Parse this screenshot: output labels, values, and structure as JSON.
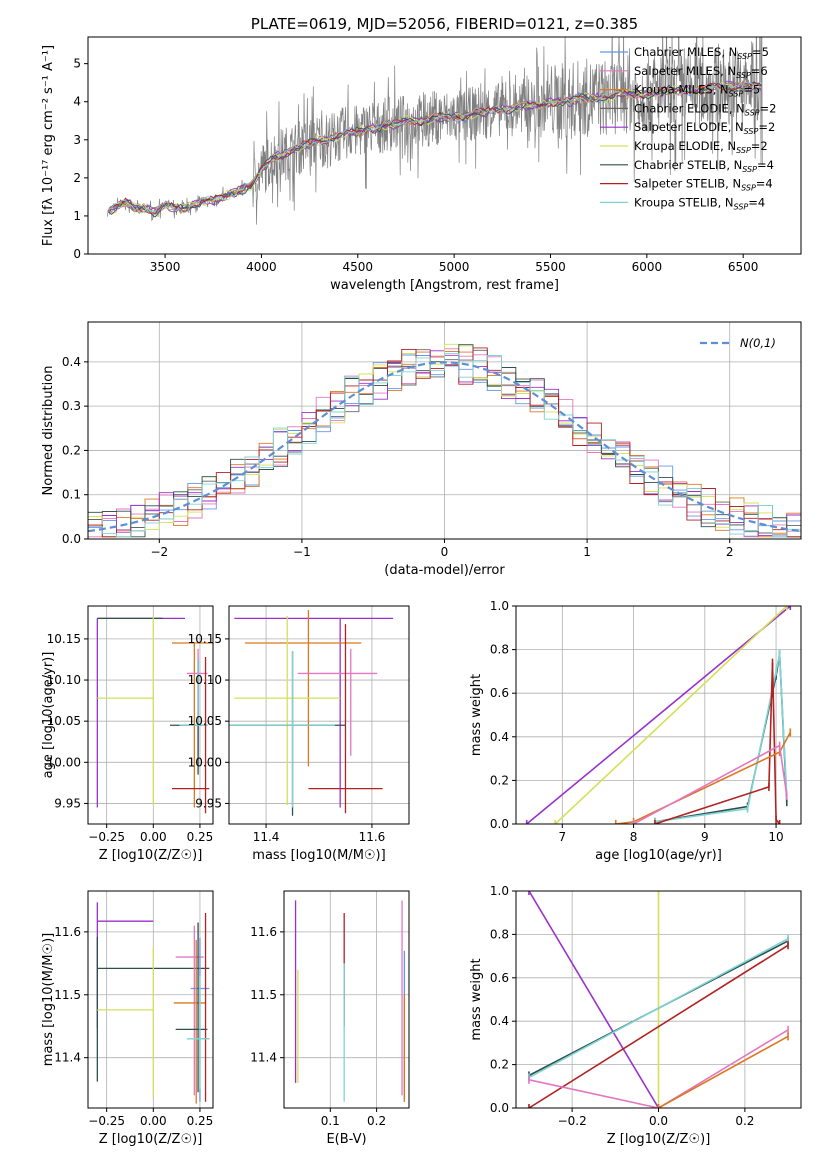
{
  "chart_data": [
    {
      "id": "spectrum",
      "type": "line",
      "title": "PLATE=0619, MJD=52056, FIBERID=0121, z=0.385",
      "xlabel": "wavelength [Angstrom, rest frame]",
      "ylabel": "Flux [fλ 10⁻¹⁷ erg cm⁻² s⁻¹ A⁻¹]",
      "xlim": [
        3100,
        6800
      ],
      "ylim": [
        0,
        5.7
      ],
      "xticks": [
        3500,
        4000,
        4500,
        5000,
        5500,
        6000,
        6500
      ],
      "yticks": [
        0,
        1,
        2,
        3,
        4,
        5
      ],
      "grid": false,
      "legend_position": "top-right",
      "data_color": "#808080",
      "data_x": [
        3200,
        3250,
        3300,
        3350,
        3400,
        3450,
        3500,
        3550,
        3600,
        3650,
        3700,
        3750,
        3800,
        3850,
        3900,
        3950,
        4000,
        4050,
        4100,
        4150,
        4200,
        4250,
        4300,
        4350,
        4400,
        4450,
        4500,
        4550,
        4600,
        4650,
        4700,
        4750,
        4800,
        4850,
        4900,
        4950,
        5000,
        5050,
        5100,
        5150,
        5200,
        5250,
        5300,
        5350,
        5400,
        5450,
        5500,
        5550,
        5600,
        5650,
        5700,
        5750,
        5800,
        5850,
        5900,
        5950,
        6000,
        6050,
        6100,
        6150,
        6200,
        6250,
        6300,
        6350,
        6400,
        6450,
        6500,
        6550,
        6600
      ],
      "data_y": [
        1.1,
        1.25,
        1.35,
        1.2,
        1.2,
        1.1,
        1.3,
        1.2,
        1.2,
        1.3,
        1.4,
        1.4,
        1.5,
        1.6,
        1.7,
        1.8,
        2.2,
        2.5,
        2.6,
        2.7,
        2.8,
        2.9,
        3.0,
        3.0,
        3.1,
        3.2,
        3.2,
        3.3,
        3.3,
        3.4,
        3.4,
        3.5,
        3.5,
        3.5,
        3.6,
        3.6,
        3.6,
        3.6,
        3.7,
        3.7,
        3.8,
        3.8,
        3.8,
        3.9,
        3.9,
        3.9,
        4.0,
        4.0,
        4.0,
        4.1,
        4.1,
        4.1,
        4.1,
        4.2,
        4.2,
        4.2,
        4.2,
        4.2,
        4.3,
        4.3,
        4.3,
        4.3,
        4.3,
        4.4,
        4.4,
        4.4,
        4.4,
        4.4,
        4.4
      ],
      "series": [
        {
          "name": "Chabrier MILES, N_SSP=5",
          "color": "#6495ed"
        },
        {
          "name": "Salpeter MILES, N_SSP=6",
          "color": "#e377c2"
        },
        {
          "name": "Kroupa MILES, N_SSP=5",
          "color": "#dd7722"
        },
        {
          "name": "Chabrier ELODIE, N_SSP=2",
          "color": "#666666"
        },
        {
          "name": "Salpeter ELODIE, N_SSP=2",
          "color": "#9932cc"
        },
        {
          "name": "Kroupa ELODIE, N_SSP=2",
          "color": "#d4e157"
        },
        {
          "name": "Chabrier STELIB, N_SSP=4",
          "color": "#2f4f4f"
        },
        {
          "name": "Salpeter STELIB, N_SSP=4",
          "color": "#b22222"
        },
        {
          "name": "Kroupa STELIB, N_SSP=4",
          "color": "#7fd4d4"
        }
      ]
    },
    {
      "id": "residuals",
      "type": "line",
      "xlabel": "(data-model)/error",
      "ylabel": "Normed distribution",
      "xlim": [
        -2.5,
        2.5
      ],
      "ylim": [
        0,
        0.49
      ],
      "xticks": [
        -2,
        -1,
        0,
        1,
        2
      ],
      "yticks": [
        0.0,
        0.1,
        0.2,
        0.3,
        0.4
      ],
      "grid": true,
      "legend_position": "top-right",
      "legend": "N(0,1)",
      "normal_color": "#5b8fd6"
    },
    {
      "id": "age_vs_Z",
      "type": "scatter",
      "xlabel": "Z [log10(Z/Z☉)]",
      "ylabel": "age  [log10(age/yr)]",
      "xlim": [
        -0.35,
        0.32
      ],
      "ylim": [
        9.925,
        10.19
      ],
      "xticks": [
        -0.25,
        0.0,
        0.25
      ],
      "yticks": [
        9.95,
        10.0,
        10.05,
        10.1,
        10.15
      ],
      "grid": true,
      "points": [
        {
          "x": -0.3,
          "y": 10.175,
          "xerr": [
            0,
            0.47
          ],
          "yerr": [
            0.23,
            0
          ],
          "color": "#9932cc"
        },
        {
          "x": -0.3,
          "y": 10.175,
          "xerr": [
            0,
            0.35
          ],
          "yerr": [
            0,
            0
          ],
          "color": "#2f4f4f"
        },
        {
          "x": 0.0,
          "y": 10.078,
          "xerr": [
            0.3,
            0
          ],
          "yerr": [
            0.13,
            0.1
          ],
          "color": "#d4e157"
        },
        {
          "x": 0.22,
          "y": 10.145,
          "xerr": [
            0.12,
            0.1
          ],
          "yerr": [
            0.2,
            0
          ],
          "color": "#dd7722"
        },
        {
          "x": 0.24,
          "y": 10.108,
          "xerr": [
            0.06,
            0.05
          ],
          "yerr": [
            0.1,
            0.03
          ],
          "color": "#e377c2"
        },
        {
          "x": 0.24,
          "y": 10.045,
          "xerr": [
            0.15,
            0.05
          ],
          "yerr": [
            0.06,
            0.08
          ],
          "color": "#2f4f4f"
        },
        {
          "x": 0.24,
          "y": 10.045,
          "xerr": [
            0.1,
            0.05
          ],
          "yerr": [
            0,
            0.08
          ],
          "color": "#7fd4d4"
        },
        {
          "x": 0.28,
          "y": 9.968,
          "xerr": [
            0.18,
            0.02
          ],
          "yerr": [
            0.03,
            0.16
          ],
          "color": "#b22222"
        }
      ]
    },
    {
      "id": "age_vs_mass",
      "type": "scatter",
      "xlabel": "mass [log10(M/M☉)]",
      "xlim": [
        11.33,
        11.67
      ],
      "ylim": [
        9.925,
        10.19
      ],
      "xticks": [
        11.4,
        11.6
      ],
      "yticks": [
        9.95,
        10.0,
        10.05,
        10.1,
        10.15
      ],
      "grid": true,
      "points": [
        {
          "x": 11.54,
          "y": 10.175,
          "xerr": [
            0.2,
            0.1
          ],
          "yerr": [
            0.23,
            0
          ],
          "color": "#9932cc"
        },
        {
          "x": 11.48,
          "y": 10.145,
          "xerr": [
            0.12,
            0.1
          ],
          "yerr": [
            0.15,
            0.04
          ],
          "color": "#dd7722"
        },
        {
          "x": 11.44,
          "y": 10.078,
          "xerr": [
            0.1,
            0.1
          ],
          "yerr": [
            0.13,
            0.1
          ],
          "color": "#d4e157"
        },
        {
          "x": 11.56,
          "y": 10.108,
          "xerr": [
            0.1,
            0.05
          ],
          "yerr": [
            0.1,
            0.03
          ],
          "color": "#e377c2"
        },
        {
          "x": 11.45,
          "y": 10.045,
          "xerr": [
            0.12,
            0.1
          ],
          "yerr": [
            0.11,
            0.09
          ],
          "color": "#2f4f4f"
        },
        {
          "x": 11.45,
          "y": 10.045,
          "xerr": [
            0.12,
            0.08
          ],
          "yerr": [
            0.1,
            0.09
          ],
          "color": "#7fd4d4"
        },
        {
          "x": 11.55,
          "y": 9.968,
          "xerr": [
            0.07,
            0.07
          ],
          "yerr": [
            0.03,
            0.2
          ],
          "color": "#b22222"
        }
      ]
    },
    {
      "id": "massweight_vs_age",
      "type": "line",
      "xlabel": "age  [log10(age/yr)]",
      "ylabel": "mass weight",
      "xlim": [
        6.35,
        10.35
      ],
      "ylim": [
        0,
        1.0
      ],
      "xticks": [
        7,
        8,
        9,
        10
      ],
      "yticks": [
        0.0,
        0.2,
        0.4,
        0.6,
        0.8,
        1.0
      ],
      "grid": true,
      "series": [
        {
          "color": "#9932cc",
          "x": [
            6.5,
            10.2
          ],
          "y": [
            0.0,
            1.0
          ]
        },
        {
          "color": "#d4e157",
          "x": [
            6.9,
            10.15
          ],
          "y": [
            0.0,
            1.0
          ]
        },
        {
          "color": "#2f4f4f",
          "x": [
            8.3,
            9.6,
            10.0,
            10.05,
            10.15
          ],
          "y": [
            0.01,
            0.08,
            0.68,
            0.78,
            0.1
          ]
        },
        {
          "color": "#7fd4d4",
          "x": [
            8.3,
            9.6,
            10.0,
            10.05,
            10.15
          ],
          "y": [
            0.01,
            0.07,
            0.7,
            0.78,
            0.13
          ]
        },
        {
          "color": "#b22222",
          "x": [
            8.3,
            9.9,
            9.95,
            10.0,
            10.05
          ],
          "y": [
            0.0,
            0.17,
            0.74,
            0.02,
            0.0
          ]
        },
        {
          "color": "#dd7722",
          "x": [
            7.75,
            8.0,
            10.05,
            10.2
          ],
          "y": [
            0.0,
            0.01,
            0.33,
            0.42
          ]
        },
        {
          "color": "#e377c2",
          "x": [
            8.0,
            10.05,
            10.15
          ],
          "y": [
            0.0,
            0.36,
            0.13
          ]
        }
      ]
    },
    {
      "id": "mass_vs_Z",
      "type": "scatter",
      "xlabel": "Z [log10(Z/Z☉)]",
      "ylabel": "mass [log10(M/M☉)]",
      "xlim": [
        -0.35,
        0.32
      ],
      "ylim": [
        11.32,
        11.665
      ],
      "xticks": [
        -0.25,
        0.0,
        0.25
      ],
      "yticks": [
        11.4,
        11.5,
        11.6
      ],
      "grid": true,
      "points": [
        {
          "x": -0.3,
          "y": 11.617,
          "xerr": [
            0,
            0.3
          ],
          "yerr": [
            0.17,
            0.03
          ],
          "color": "#9932cc"
        },
        {
          "x": -0.3,
          "y": 11.542,
          "xerr": [
            0,
            0.6
          ],
          "yerr": [
            0.18,
            0.05
          ],
          "color": "#2f4f4f"
        },
        {
          "x": 0.0,
          "y": 11.476,
          "xerr": [
            0.3,
            0
          ],
          "yerr": [
            0.14,
            0.1
          ],
          "color": "#d4e157"
        },
        {
          "x": 0.22,
          "y": 11.56,
          "xerr": [
            0.1,
            0.05
          ],
          "yerr": [
            0.22,
            0.05
          ],
          "color": "#e377c2"
        },
        {
          "x": 0.25,
          "y": 11.51,
          "xerr": [
            0.05,
            0.05
          ],
          "yerr": [
            0.18,
            0.08
          ],
          "color": "#6495ed"
        },
        {
          "x": 0.23,
          "y": 11.487,
          "xerr": [
            0.12,
            0.05
          ],
          "yerr": [
            0.16,
            0.1
          ],
          "color": "#dd7722"
        },
        {
          "x": 0.24,
          "y": 11.445,
          "xerr": [
            0.12,
            0.05
          ],
          "yerr": [
            0.1,
            0.17
          ],
          "color": "#2f4f4f"
        },
        {
          "x": 0.28,
          "y": 11.43,
          "xerr": [
            0.02,
            0.02
          ],
          "yerr": [
            0.1,
            0.2
          ],
          "color": "#b22222"
        },
        {
          "x": 0.25,
          "y": 11.43,
          "xerr": [
            0.07,
            0.05
          ],
          "yerr": [
            0.08,
            0.1
          ],
          "color": "#7fd4d4"
        }
      ]
    },
    {
      "id": "mass_vs_ebv",
      "type": "scatter",
      "xlabel": "E(B-V)",
      "xlim": [
        0.0,
        0.27
      ],
      "ylim": [
        11.32,
        11.665
      ],
      "xticks": [
        0.1,
        0.2
      ],
      "yticks": [
        11.4,
        11.5,
        11.6
      ],
      "grid": true,
      "points": [
        {
          "x": 0.025,
          "y": 11.5,
          "xerr": [
            0,
            0
          ],
          "yerr": [
            0.14,
            0.15
          ],
          "color": "#9932cc"
        },
        {
          "x": 0.03,
          "y": 11.46,
          "xerr": [
            0,
            0
          ],
          "yerr": [
            0.1,
            0.08
          ],
          "color": "#d4e157"
        },
        {
          "x": 0.13,
          "y": 11.55,
          "xerr": [
            0,
            0
          ],
          "yerr": [
            0.1,
            0.08
          ],
          "color": "#b22222"
        },
        {
          "x": 0.13,
          "y": 11.45,
          "xerr": [
            0,
            0
          ],
          "yerr": [
            0.12,
            0.1
          ],
          "color": "#7fd4d4"
        },
        {
          "x": 0.255,
          "y": 11.5,
          "xerr": [
            0,
            0
          ],
          "yerr": [
            0.16,
            0.15
          ],
          "color": "#e377c2"
        },
        {
          "x": 0.26,
          "y": 11.45,
          "xerr": [
            0,
            0
          ],
          "yerr": [
            0.12,
            0.12
          ],
          "color": "#6495ed"
        },
        {
          "x": 0.26,
          "y": 11.4,
          "xerr": [
            0,
            0
          ],
          "yerr": [
            0.07,
            0.1
          ],
          "color": "#dd7722"
        }
      ]
    },
    {
      "id": "massweight_vs_Z",
      "type": "line",
      "xlabel": "Z [log10(Z/Z☉)]",
      "ylabel": "mass weight",
      "xlim": [
        -0.33,
        0.33
      ],
      "ylim": [
        0,
        1.0
      ],
      "xticks": [
        -0.2,
        0.0,
        0.2
      ],
      "yticks": [
        0.0,
        0.2,
        0.4,
        0.6,
        0.8,
        1.0
      ],
      "grid": true,
      "series": [
        {
          "color": "#9932cc",
          "x": [
            -0.3,
            0.0
          ],
          "y": [
            1.0,
            0.0
          ]
        },
        {
          "color": "#d4e157",
          "x": [
            0.0,
            0.0
          ],
          "y": [
            0.0,
            1.0
          ]
        },
        {
          "color": "#2f4f4f",
          "x": [
            -0.3,
            0.3
          ],
          "y": [
            0.15,
            0.77
          ]
        },
        {
          "color": "#7fd4d4",
          "x": [
            -0.3,
            0.3
          ],
          "y": [
            0.14,
            0.78
          ]
        },
        {
          "color": "#b22222",
          "x": [
            -0.3,
            0.3
          ],
          "y": [
            0.0,
            0.75
          ]
        },
        {
          "color": "#e377c2",
          "x": [
            -0.3,
            0.0,
            0.3
          ],
          "y": [
            0.13,
            0.0,
            0.36
          ]
        },
        {
          "color": "#dd7722",
          "x": [
            0.0,
            0.3
          ],
          "y": [
            0.0,
            0.33
          ]
        }
      ]
    }
  ]
}
